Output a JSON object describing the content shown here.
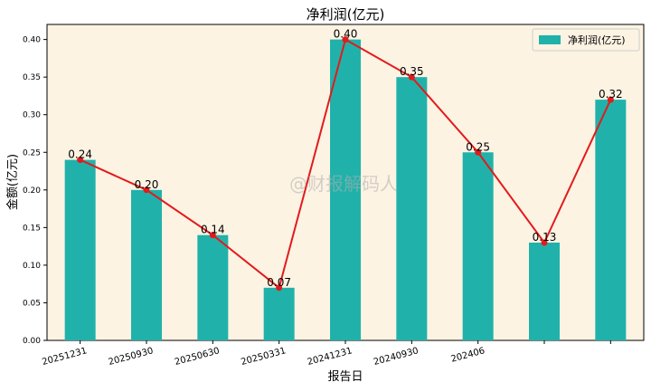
{
  "chart_data": {
    "type": "bar",
    "title": "净利润(亿元)",
    "xlabel": "报告日",
    "ylabel": "金额(亿元)",
    "categories": [
      "20251231",
      "20250930",
      "20250630",
      "20250331",
      "20241231",
      "20240930",
      "202406",
      "",
      ""
    ],
    "series": [
      {
        "name": "净利润(亿元)",
        "kind": "bar",
        "values": [
          0.24,
          0.2,
          0.14,
          0.07,
          0.4,
          0.35,
          0.25,
          0.13,
          0.32
        ]
      },
      {
        "kind": "line",
        "values": [
          0.24,
          0.2,
          0.14,
          0.07,
          0.4,
          0.35,
          0.25,
          0.13,
          0.32
        ]
      }
    ],
    "data_labels": [
      "0.24",
      "0.20",
      "0.14",
      "0.07",
      "0.40",
      "0.35",
      "0.25",
      "0.13",
      "0.32"
    ],
    "yticks": [
      "0.00",
      "0.05",
      "0.10",
      "0.15",
      "0.20",
      "0.25",
      "0.30",
      "0.35",
      "0.40"
    ],
    "ylim": [
      0,
      0.42
    ],
    "grid": false,
    "legend_position": "top-right",
    "watermark": "@财报解码人",
    "colors": {
      "bar": "#20b2aa",
      "line": "#e31a1c",
      "plot_background": "#fdf3e3"
    }
  }
}
